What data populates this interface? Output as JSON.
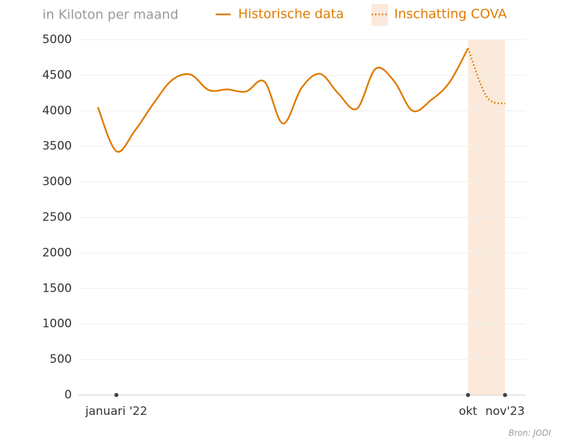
{
  "chart_data": {
    "type": "line",
    "subtitle": "in Kiloton per maand",
    "source": "Bron: JODI",
    "categories": [
      null,
      "januari '22",
      null,
      null,
      null,
      null,
      null,
      null,
      null,
      null,
      null,
      null,
      null,
      null,
      null,
      null,
      null,
      null,
      null,
      null,
      "okt",
      null,
      "nov'23"
    ],
    "series": [
      {
        "name": "Historische data",
        "color": "#e07b00",
        "style": "solid",
        "values": [
          4050,
          3430,
          3720,
          4100,
          4430,
          4510,
          4290,
          4300,
          4270,
          4410,
          3820,
          4320,
          4520,
          4240,
          4030,
          4590,
          4420,
          4000,
          4150,
          4400,
          4880,
          null,
          null
        ]
      },
      {
        "name": "Inschatting COVA",
        "color": "#e07b00",
        "style": "dotted",
        "shaded": true,
        "values": [
          null,
          null,
          null,
          null,
          null,
          null,
          null,
          null,
          null,
          null,
          null,
          null,
          null,
          null,
          null,
          null,
          null,
          null,
          null,
          null,
          4880,
          4200,
          4100
        ]
      }
    ],
    "ylim": [
      0,
      5000
    ],
    "yticks": [
      0,
      500,
      1000,
      1500,
      2000,
      2500,
      3000,
      3500,
      4000,
      4500,
      5000
    ],
    "grid": true
  }
}
